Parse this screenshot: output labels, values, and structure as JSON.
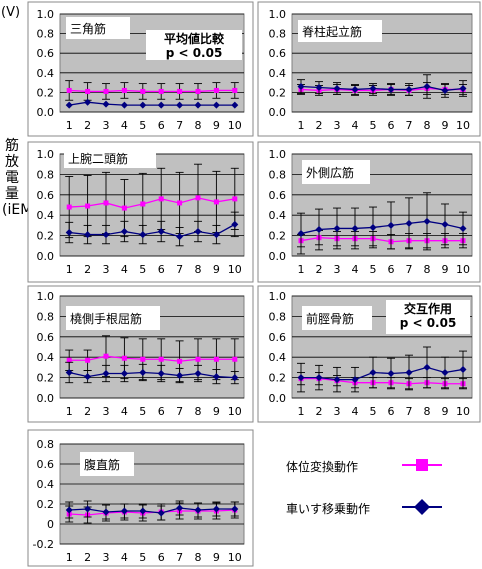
{
  "axis_unit": "(V)",
  "y_axis_label": "筋放電量(iEMG/sec)",
  "chart_data": [
    {
      "type": "line",
      "title": "三角筋",
      "annotation": "平均値比較\n p < 0.05",
      "categories": [
        1,
        2,
        3,
        4,
        5,
        6,
        7,
        8,
        9,
        10
      ],
      "ylim": [
        0,
        1.0
      ],
      "yticks": [
        "0.0",
        "0.2",
        "0.4",
        "0.6",
        "0.8",
        "1.0"
      ],
      "series": [
        {
          "name": "体位変換動作",
          "color": "#ff00ff",
          "values": [
            0.22,
            0.21,
            0.21,
            0.22,
            0.21,
            0.21,
            0.21,
            0.21,
            0.22,
            0.22
          ],
          "errors": [
            0.1,
            0.09,
            0.08,
            0.08,
            0.08,
            0.08,
            0.08,
            0.08,
            0.08,
            0.08
          ]
        },
        {
          "name": "車いす移乗動作",
          "color": "#000080",
          "values": [
            0.07,
            0.1,
            0.08,
            0.07,
            0.07,
            0.07,
            0.07,
            0.07,
            0.07,
            0.07
          ],
          "errors": [
            0,
            0,
            0,
            0,
            0,
            0,
            0,
            0,
            0,
            0
          ]
        }
      ]
    },
    {
      "type": "line",
      "title": "脊柱起立筋",
      "annotation": "",
      "categories": [
        1,
        2,
        3,
        4,
        5,
        6,
        7,
        8,
        9,
        10
      ],
      "ylim": [
        0,
        1.0
      ],
      "yticks": [
        "0.0",
        "0.2",
        "0.4",
        "0.6",
        "0.8",
        "1.0"
      ],
      "series": [
        {
          "name": "体位変換動作",
          "color": "#ff00ff",
          "values": [
            0.23,
            0.22,
            0.23,
            0.22,
            0.22,
            0.23,
            0.22,
            0.24,
            0.23,
            0.23
          ],
          "errors": [
            0.05,
            0.05,
            0.05,
            0.05,
            0.05,
            0.05,
            0.05,
            0.06,
            0.05,
            0.05
          ]
        },
        {
          "name": "車いす移乗動作",
          "color": "#000080",
          "values": [
            0.26,
            0.25,
            0.24,
            0.23,
            0.24,
            0.23,
            0.23,
            0.26,
            0.22,
            0.24
          ],
          "errors": [
            0.07,
            0.06,
            0.06,
            0.05,
            0.05,
            0.06,
            0.06,
            0.12,
            0.07,
            0.08
          ]
        }
      ]
    },
    {
      "type": "line",
      "title": "上腕二頭筋",
      "annotation": "",
      "categories": [
        1,
        2,
        3,
        4,
        5,
        6,
        7,
        8,
        9,
        10
      ],
      "ylim": [
        0,
        1.0
      ],
      "yticks": [
        "0.0",
        "0.2",
        "0.4",
        "0.6",
        "0.8",
        "1.0"
      ],
      "series": [
        {
          "name": "体位変換動作",
          "color": "#ff00ff",
          "values": [
            0.48,
            0.49,
            0.52,
            0.47,
            0.51,
            0.56,
            0.52,
            0.57,
            0.53,
            0.56
          ],
          "errors": [
            0.3,
            0.3,
            0.3,
            0.28,
            0.3,
            0.3,
            0.3,
            0.33,
            0.3,
            0.3
          ]
        },
        {
          "name": "車いす移乗動作",
          "color": "#000080",
          "values": [
            0.23,
            0.21,
            0.21,
            0.24,
            0.21,
            0.24,
            0.19,
            0.24,
            0.21,
            0.31
          ],
          "errors": [
            0.1,
            0.09,
            0.09,
            0.1,
            0.09,
            0.1,
            0.09,
            0.1,
            0.09,
            0.12
          ]
        }
      ]
    },
    {
      "type": "line",
      "title": "外側広筋",
      "annotation": "",
      "categories": [
        1,
        2,
        3,
        4,
        5,
        6,
        7,
        8,
        9,
        10
      ],
      "ylim": [
        0,
        1.0
      ],
      "yticks": [
        "0.0",
        "0.2",
        "0.4",
        "0.6",
        "0.8",
        "1.0"
      ],
      "series": [
        {
          "name": "体位変換動作",
          "color": "#ff00ff",
          "values": [
            0.15,
            0.18,
            0.17,
            0.17,
            0.17,
            0.14,
            0.15,
            0.15,
            0.15,
            0.15
          ],
          "errors": [
            0.06,
            0.07,
            0.07,
            0.07,
            0.07,
            0.07,
            0.07,
            0.07,
            0.07,
            0.07
          ]
        },
        {
          "name": "車いす移乗動作",
          "color": "#000080",
          "values": [
            0.22,
            0.26,
            0.27,
            0.27,
            0.28,
            0.3,
            0.32,
            0.34,
            0.31,
            0.27
          ],
          "errors": [
            0.2,
            0.2,
            0.2,
            0.2,
            0.2,
            0.23,
            0.25,
            0.28,
            0.2,
            0.16
          ]
        }
      ]
    },
    {
      "type": "line",
      "title": "橈側手根屈筋",
      "annotation": "",
      "categories": [
        1,
        2,
        3,
        4,
        5,
        6,
        7,
        8,
        9,
        10
      ],
      "ylim": [
        0,
        1.0
      ],
      "yticks": [
        "0.0",
        "0.2",
        "0.4",
        "0.6",
        "0.8",
        "1.0"
      ],
      "series": [
        {
          "name": "体位変換動作",
          "color": "#ff00ff",
          "values": [
            0.37,
            0.37,
            0.41,
            0.39,
            0.38,
            0.38,
            0.36,
            0.38,
            0.38,
            0.38
          ],
          "errors": [
            0.1,
            0.1,
            0.2,
            0.2,
            0.2,
            0.2,
            0.2,
            0.2,
            0.2,
            0.2
          ]
        },
        {
          "name": "車いす移乗動作",
          "color": "#000080",
          "values": [
            0.25,
            0.21,
            0.24,
            0.24,
            0.25,
            0.24,
            0.22,
            0.24,
            0.21,
            0.2
          ],
          "errors": [
            0.1,
            0.06,
            0.08,
            0.08,
            0.08,
            0.08,
            0.07,
            0.08,
            0.07,
            0.06
          ]
        }
      ]
    },
    {
      "type": "line",
      "title": "前脛骨筋",
      "annotation": "交互作用\n p < 0.05",
      "categories": [
        1,
        2,
        3,
        4,
        5,
        6,
        7,
        8,
        9,
        10
      ],
      "ylim": [
        0,
        1.0
      ],
      "yticks": [
        "0.0",
        "0.2",
        "0.4",
        "0.6",
        "0.8",
        "1.0"
      ],
      "series": [
        {
          "name": "体位変換動作",
          "color": "#ff00ff",
          "values": [
            0.19,
            0.19,
            0.17,
            0.15,
            0.15,
            0.15,
            0.14,
            0.15,
            0.14,
            0.14
          ],
          "errors": [
            0.06,
            0.06,
            0.05,
            0.05,
            0.05,
            0.05,
            0.05,
            0.05,
            0.05,
            0.05
          ]
        },
        {
          "name": "車いす移乗動作",
          "color": "#000080",
          "values": [
            0.2,
            0.2,
            0.18,
            0.18,
            0.25,
            0.24,
            0.25,
            0.3,
            0.25,
            0.28
          ],
          "errors": [
            0.14,
            0.12,
            0.12,
            0.12,
            0.15,
            0.15,
            0.17,
            0.2,
            0.15,
            0.18
          ]
        }
      ]
    },
    {
      "type": "line",
      "title": "腹直筋",
      "annotation": "",
      "categories": [
        1,
        2,
        3,
        4,
        5,
        6,
        7,
        8,
        9,
        10
      ],
      "ylim": [
        -0.2,
        0.8
      ],
      "yticks": [
        "-0.2",
        "0",
        "0.2",
        "0.4",
        "0.6",
        "0.8"
      ],
      "series": [
        {
          "name": "体位変換動作",
          "color": "#ff00ff",
          "values": [
            0.1,
            0.09,
            0.11,
            0.12,
            0.11,
            0.12,
            0.13,
            0.13,
            0.13,
            0.14
          ],
          "errors": [
            0.08,
            0.08,
            0.08,
            0.08,
            0.08,
            0.08,
            0.08,
            0.08,
            0.08,
            0.08
          ]
        },
        {
          "name": "車いす移乗動作",
          "color": "#000080",
          "values": [
            0.14,
            0.15,
            0.12,
            0.13,
            0.13,
            0.11,
            0.16,
            0.14,
            0.15,
            0.15
          ],
          "errors": [
            0.08,
            0.08,
            0.07,
            0.07,
            0.07,
            0.07,
            0.07,
            0.07,
            0.07,
            0.07
          ]
        }
      ]
    }
  ],
  "legend": [
    {
      "label": "体位変換動作",
      "color": "#ff00ff",
      "marker": "square"
    },
    {
      "label": "車いす移乗動作",
      "color": "#000080",
      "marker": "diamond"
    }
  ]
}
